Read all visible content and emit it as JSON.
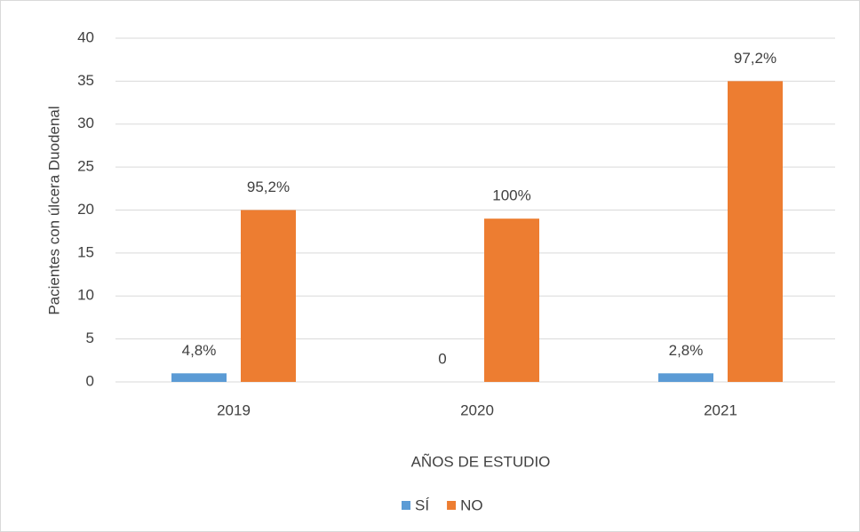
{
  "chart_data": {
    "type": "bar",
    "y_label": "Pacientes con úlcera Duodenal",
    "x_label": "AÑOS DE ESTUDIO",
    "categories": [
      "2019",
      "2020",
      "2021"
    ],
    "series": [
      {
        "name": "SÍ",
        "color": "#5b9bd5",
        "values": [
          1,
          0,
          1
        ],
        "value_labels": [
          "4,8%",
          "0",
          "2,8%"
        ]
      },
      {
        "name": "NO",
        "color": "#ed7d31",
        "values": [
          20,
          19,
          35
        ],
        "value_labels": [
          "95,2%",
          "100%",
          "97,2%"
        ]
      }
    ],
    "ylim": [
      0,
      40
    ],
    "yticks": [
      0,
      5,
      10,
      15,
      20,
      25,
      30,
      35,
      40
    ],
    "grid": true,
    "legend": "bottom"
  }
}
